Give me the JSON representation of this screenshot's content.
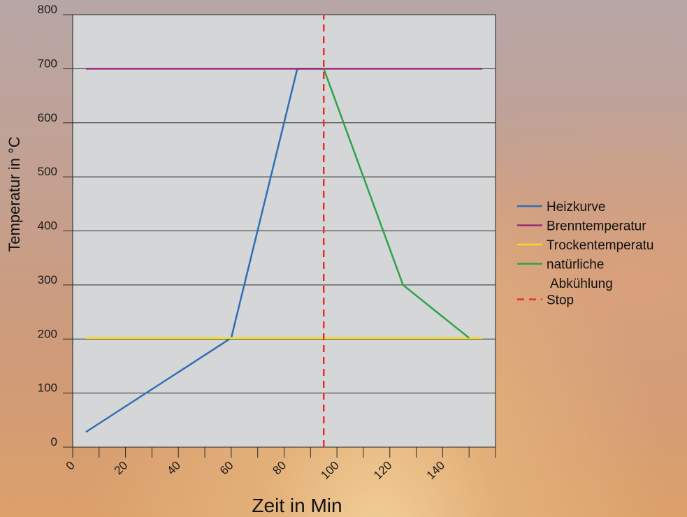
{
  "chart_data": {
    "type": "line",
    "title": "",
    "xlabel": "Zeit in Min",
    "ylabel": "Temperatur in °C",
    "xlim": [
      0,
      160
    ],
    "ylim": [
      0,
      800
    ],
    "x_ticks": [
      0,
      20,
      40,
      60,
      80,
      100,
      120,
      140
    ],
    "y_ticks": [
      0,
      100,
      200,
      300,
      400,
      500,
      600,
      700,
      800
    ],
    "grid": true,
    "legend_position": "right",
    "plot_background": "#d5d6d7",
    "series": [
      {
        "name": "Heizkurve",
        "color": "#2f6fb7",
        "style": "solid",
        "points": [
          [
            5,
            28
          ],
          [
            60,
            202
          ],
          [
            85,
            700
          ],
          [
            95,
            700
          ]
        ]
      },
      {
        "name": "Brenntemperatur",
        "color": "#9a2a7a",
        "style": "solid",
        "points": [
          [
            5,
            700
          ],
          [
            155,
            700
          ]
        ]
      },
      {
        "name": "Trockentemperatu",
        "color": "#f2dc1c",
        "style": "solid",
        "points": [
          [
            5,
            202
          ],
          [
            155,
            202
          ]
        ]
      },
      {
        "name": "natürliche\nAbkühlung",
        "color": "#2ea24a",
        "style": "solid",
        "points": [
          [
            95,
            700
          ],
          [
            125,
            300
          ],
          [
            150,
            202
          ]
        ]
      },
      {
        "name": "Stop",
        "color": "#e8312b",
        "style": "dashed",
        "points": [
          [
            95,
            0
          ],
          [
            95,
            800
          ]
        ]
      }
    ]
  }
}
